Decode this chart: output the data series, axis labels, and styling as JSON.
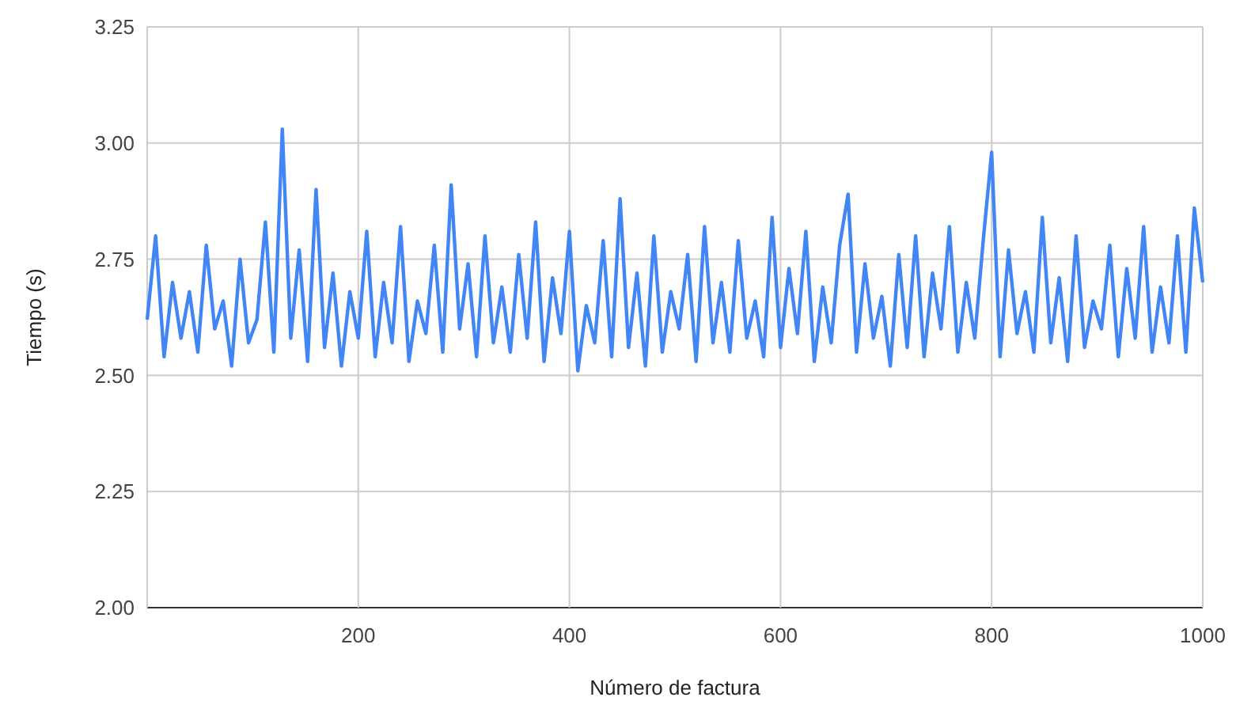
{
  "chart_data": {
    "type": "line",
    "xlabel": "Número de factura",
    "ylabel": "Tiempo (s)",
    "x": [
      0,
      8,
      16,
      24,
      32,
      40,
      48,
      56,
      64,
      72,
      80,
      88,
      96,
      104,
      112,
      120,
      128,
      136,
      144,
      152,
      160,
      168,
      176,
      184,
      192,
      200,
      208,
      216,
      224,
      232,
      240,
      248,
      256,
      264,
      272,
      280,
      288,
      296,
      304,
      312,
      320,
      328,
      336,
      344,
      352,
      360,
      368,
      376,
      384,
      392,
      400,
      408,
      416,
      424,
      432,
      440,
      448,
      456,
      464,
      472,
      480,
      488,
      496,
      504,
      512,
      520,
      528,
      536,
      544,
      552,
      560,
      568,
      576,
      584,
      592,
      600,
      608,
      616,
      624,
      632,
      640,
      648,
      656,
      664,
      672,
      680,
      688,
      696,
      704,
      712,
      720,
      728,
      736,
      744,
      752,
      760,
      768,
      776,
      784,
      792,
      800,
      808,
      816,
      824,
      832,
      840,
      848,
      856,
      864,
      872,
      880,
      888,
      896,
      904,
      912,
      920,
      928,
      936,
      944,
      952,
      960,
      968,
      976,
      984,
      992,
      1000
    ],
    "series": [
      {
        "color": "#4285f4",
        "values": [
          2.62,
          2.8,
          2.54,
          2.7,
          2.58,
          2.68,
          2.55,
          2.78,
          2.6,
          2.66,
          2.52,
          2.75,
          2.57,
          2.62,
          2.83,
          2.55,
          3.03,
          2.58,
          2.77,
          2.53,
          2.9,
          2.56,
          2.72,
          2.52,
          2.68,
          2.58,
          2.81,
          2.54,
          2.7,
          2.57,
          2.82,
          2.53,
          2.66,
          2.59,
          2.78,
          2.55,
          2.91,
          2.6,
          2.74,
          2.54,
          2.8,
          2.57,
          2.69,
          2.55,
          2.76,
          2.58,
          2.83,
          2.53,
          2.71,
          2.59,
          2.81,
          2.51,
          2.65,
          2.57,
          2.79,
          2.54,
          2.88,
          2.56,
          2.72,
          2.52,
          2.8,
          2.55,
          2.68,
          2.6,
          2.76,
          2.53,
          2.82,
          2.57,
          2.7,
          2.55,
          2.79,
          2.58,
          2.66,
          2.54,
          2.84,
          2.56,
          2.73,
          2.59,
          2.81,
          2.53,
          2.69,
          2.57,
          2.78,
          2.89,
          2.55,
          2.74,
          2.58,
          2.67,
          2.52,
          2.76,
          2.56,
          2.8,
          2.54,
          2.72,
          2.6,
          2.82,
          2.55,
          2.7,
          2.58,
          2.79,
          2.98,
          2.54,
          2.77,
          2.59,
          2.68,
          2.55,
          2.84,
          2.57,
          2.71,
          2.53,
          2.8,
          2.56,
          2.66,
          2.6,
          2.78,
          2.54,
          2.73,
          2.58,
          2.82,
          2.55,
          2.69,
          2.57,
          2.8,
          2.55,
          2.86,
          2.7
        ]
      }
    ],
    "xlim": [
      0,
      1000
    ],
    "xticks": [
      {
        "value": 0,
        "label": null
      },
      200,
      400,
      600,
      800,
      1000
    ],
    "ylim": [
      2,
      3.25
    ],
    "yticks": [
      {
        "value": 2,
        "label": "2.00"
      },
      {
        "value": 2.25,
        "label": "2.25"
      },
      {
        "value": 2.5,
        "label": "2.50"
      },
      {
        "value": 2.75,
        "label": "2.75"
      },
      {
        "value": 3,
        "label": "3.00"
      },
      {
        "value": 3.25,
        "label": "3.25"
      }
    ],
    "grid": true
  }
}
